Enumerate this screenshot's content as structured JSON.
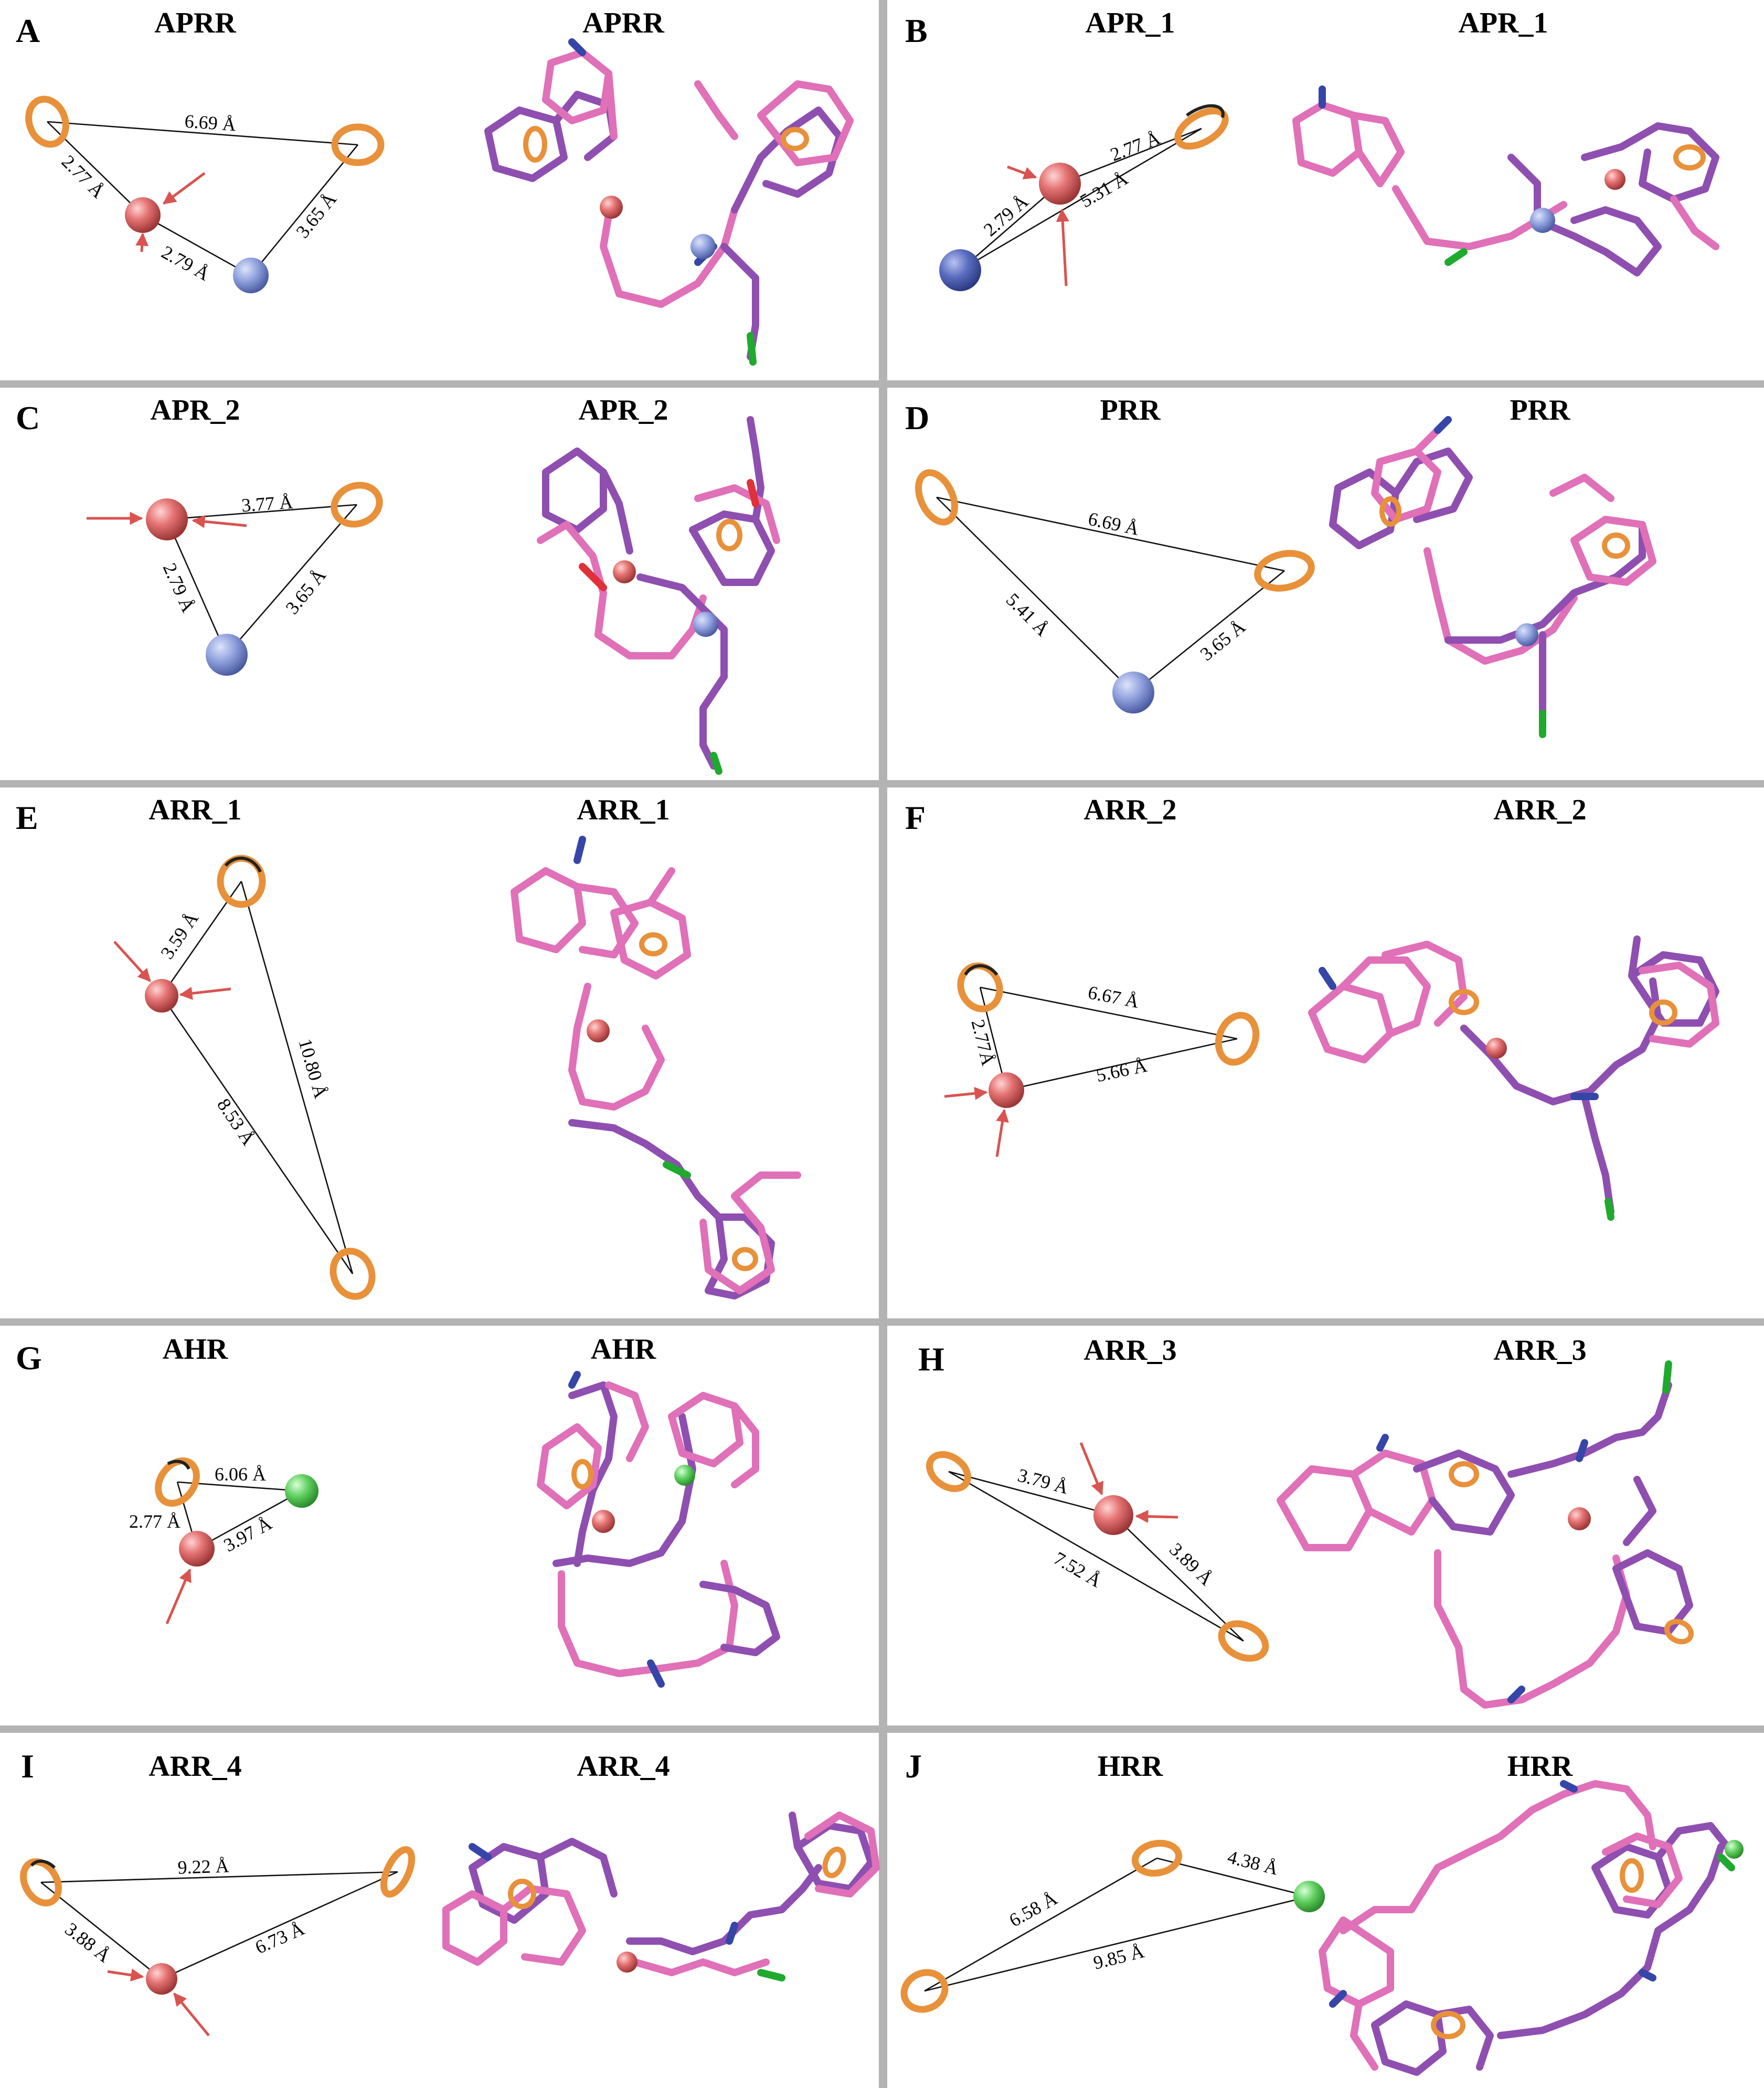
{
  "colors": {
    "divider": "#b3b3b3",
    "aromatic_ring": "#e8913a",
    "acceptor": "#e57373",
    "positive_ionizable": "#8fa0dd",
    "hydrophobic": "#5fcf5f",
    "ligand_pink": "#e070b8",
    "ligand_purple": "#8e4fb0",
    "nitrogen": "#3645a8",
    "chlorine": "#1faa2e",
    "oxygen": "#e0303a"
  },
  "panels": [
    {
      "letter": "A",
      "title": "APRR",
      "distances": [
        "6.69 Å",
        "2.77 Å",
        "2.79 Å",
        "3.65 Å"
      ]
    },
    {
      "letter": "B",
      "title": "APR_1",
      "distances": [
        "2.77 Å",
        "2.79 Å",
        "5.31 Å"
      ]
    },
    {
      "letter": "C",
      "title": "APR_2",
      "distances": [
        "3.77 Å",
        "2.79 Å",
        "3.65 Å"
      ]
    },
    {
      "letter": "D",
      "title": "PRR",
      "distances": [
        "6.69 Å",
        "5.41 Å",
        "3.65 Å"
      ]
    },
    {
      "letter": "E",
      "title": "ARR_1",
      "distances": [
        "3.59 Å",
        "10.80 Å",
        "8.53 Å"
      ]
    },
    {
      "letter": "F",
      "title": "ARR_2",
      "distances": [
        "6.67 Å",
        "2.77Å",
        "5.66 Å"
      ]
    },
    {
      "letter": "G",
      "title": "AHR",
      "distances": [
        "6.06 Å",
        "2.77 Å",
        "3.97 Å"
      ]
    },
    {
      "letter": "H",
      "title": "ARR_3",
      "distances": [
        "3.79 Å",
        "3.89 Å",
        "7.52 Å"
      ]
    },
    {
      "letter": "I",
      "title": "ARR_4",
      "distances": [
        "9.22 Å",
        "3.88 Å",
        "6.73 Å"
      ]
    },
    {
      "letter": "J",
      "title": "HRR",
      "distances": [
        "4.38 Å",
        "6.58 Å",
        "9.85 Å"
      ]
    }
  ]
}
